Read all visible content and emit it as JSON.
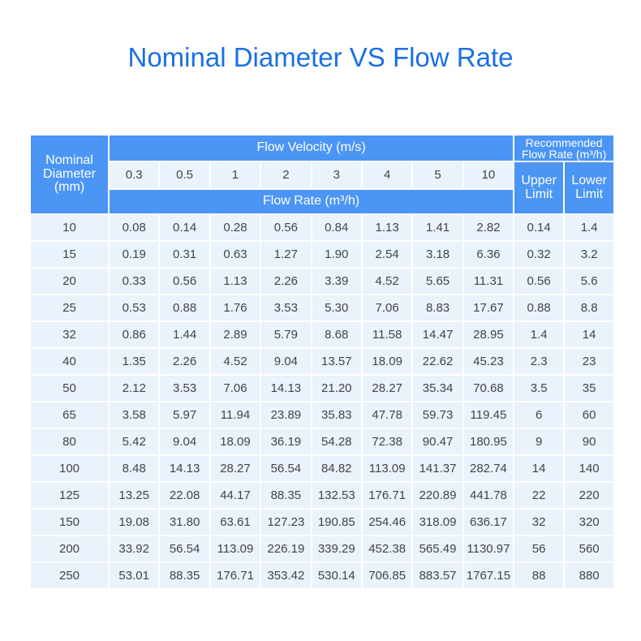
{
  "title": "Nominal Diameter VS Flow Rate",
  "table": {
    "nominal_header": [
      "Nominal",
      "Diameter",
      "(mm)"
    ],
    "velocity_header": "Flow Velocity (m/s)",
    "recommended_header": [
      "Recommended",
      "Flow Rate (m³/h)"
    ],
    "velocities": [
      "0.3",
      "0.5",
      "1",
      "2",
      "3",
      "4",
      "5",
      "10"
    ],
    "upper_limit": [
      "Upper",
      "Limit"
    ],
    "lower_limit": [
      "Lower",
      "Limit"
    ],
    "flow_rate_header": "Flow Rate (m³/h)",
    "rows": [
      [
        "10",
        "0.08",
        "0.14",
        "0.28",
        "0.56",
        "0.84",
        "1.13",
        "1.41",
        "2.82",
        "0.14",
        "1.4"
      ],
      [
        "15",
        "0.19",
        "0.31",
        "0.63",
        "1.27",
        "1.90",
        "2.54",
        "3.18",
        "6.36",
        "0.32",
        "3.2"
      ],
      [
        "20",
        "0.33",
        "0.56",
        "1.13",
        "2.26",
        "3.39",
        "4.52",
        "5.65",
        "11.31",
        "0.56",
        "5.6"
      ],
      [
        "25",
        "0.53",
        "0.88",
        "1.76",
        "3.53",
        "5.30",
        "7.06",
        "8.83",
        "17.67",
        "0.88",
        "8.8"
      ],
      [
        "32",
        "0.86",
        "1.44",
        "2.89",
        "5.79",
        "8.68",
        "11.58",
        "14.47",
        "28.95",
        "1.4",
        "14"
      ],
      [
        "40",
        "1.35",
        "2.26",
        "4.52",
        "9.04",
        "13.57",
        "18.09",
        "22.62",
        "45.23",
        "2.3",
        "23"
      ],
      [
        "50",
        "2.12",
        "3.53",
        "7.06",
        "14.13",
        "21.20",
        "28.27",
        "35.34",
        "70.68",
        "3.5",
        "35"
      ],
      [
        "65",
        "3.58",
        "5.97",
        "11.94",
        "23.89",
        "35.83",
        "47.78",
        "59.73",
        "119.45",
        "6",
        "60"
      ],
      [
        "80",
        "5.42",
        "9.04",
        "18.09",
        "36.19",
        "54.28",
        "72.38",
        "90.47",
        "180.95",
        "9",
        "90"
      ],
      [
        "100",
        "8.48",
        "14.13",
        "28.27",
        "56.54",
        "84.82",
        "113.09",
        "141.37",
        "282.74",
        "14",
        "140"
      ],
      [
        "125",
        "13.25",
        "22.08",
        "44.17",
        "88.35",
        "132.53",
        "176.71",
        "220.89",
        "441.78",
        "22",
        "220"
      ],
      [
        "150",
        "19.08",
        "31.80",
        "63.61",
        "127.23",
        "190.85",
        "254.46",
        "318.09",
        "636.17",
        "32",
        "320"
      ],
      [
        "200",
        "33.92",
        "56.54",
        "113.09",
        "226.19",
        "339.29",
        "452.38",
        "565.49",
        "1130.97",
        "56",
        "560"
      ],
      [
        "250",
        "53.01",
        "88.35",
        "176.71",
        "353.42",
        "530.14",
        "706.85",
        "883.57",
        "1767.15",
        "88",
        "880"
      ]
    ]
  }
}
